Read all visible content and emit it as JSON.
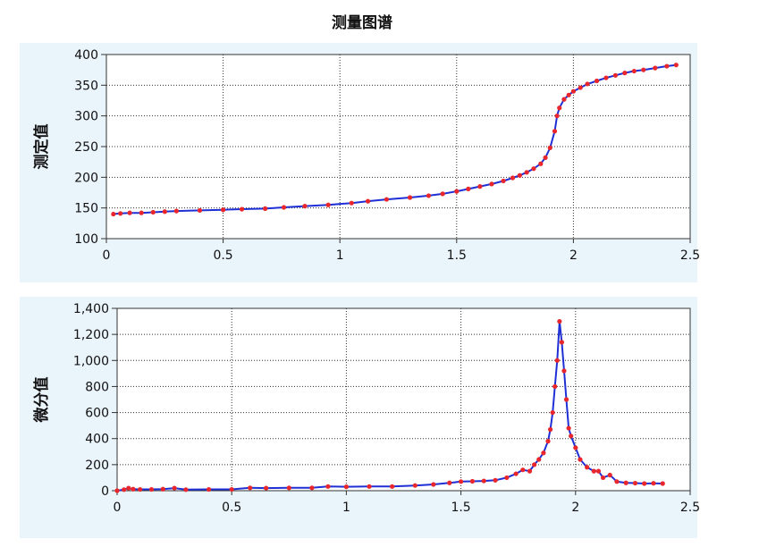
{
  "title": "测量图谱",
  "colors": {
    "panel_bg": "#eaf4fb",
    "plot_bg": "#ffffff",
    "line": "#1f2fd6",
    "marker": "#e8262b",
    "grid": "#333333"
  },
  "chart_data": [
    {
      "type": "line",
      "ylabel": "测定值",
      "xlim": [
        0,
        2.5
      ],
      "ylim": [
        100,
        400
      ],
      "xticks": [
        0,
        0.5,
        1,
        1.5,
        2,
        2.5
      ],
      "xtick_labels": [
        "0",
        "0.5",
        "1",
        "1.5",
        "2",
        "2.5"
      ],
      "yticks": [
        100,
        150,
        200,
        250,
        300,
        350,
        400
      ],
      "ytick_labels": [
        "100",
        "150",
        "200",
        "250",
        "300",
        "350",
        "400"
      ],
      "grid": true,
      "series": [
        {
          "x": [
            0.03,
            0.06,
            0.1,
            0.15,
            0.2,
            0.25,
            0.3,
            0.4,
            0.5,
            0.58,
            0.68,
            0.76,
            0.85,
            0.95,
            1.05,
            1.12,
            1.2,
            1.3,
            1.38,
            1.44,
            1.5,
            1.55,
            1.6,
            1.65,
            1.7,
            1.74,
            1.77,
            1.8,
            1.83,
            1.86,
            1.88,
            1.9,
            1.92,
            1.93,
            1.94,
            1.96,
            1.98,
            2.0,
            2.03,
            2.06,
            2.1,
            2.14,
            2.18,
            2.22,
            2.26,
            2.3,
            2.35,
            2.4,
            2.44
          ],
          "y": [
            140,
            141,
            142,
            142,
            143,
            144,
            145,
            146,
            147,
            148,
            149,
            151,
            153,
            155,
            158,
            161,
            164,
            167,
            170,
            173,
            177,
            181,
            185,
            189,
            194,
            199,
            203,
            208,
            214,
            222,
            232,
            248,
            275,
            300,
            313,
            327,
            334,
            340,
            346,
            352,
            357,
            362,
            366,
            370,
            373,
            375,
            378,
            381,
            383
          ]
        }
      ]
    },
    {
      "type": "line",
      "ylabel": "微分值",
      "xlim": [
        0,
        2.5
      ],
      "ylim": [
        0,
        1400
      ],
      "xticks": [
        0,
        0.5,
        1,
        1.5,
        2,
        2.5
      ],
      "xtick_labels": [
        "0",
        "0.5",
        "1",
        "1.5",
        "2",
        "2.5"
      ],
      "yticks": [
        0,
        200,
        400,
        600,
        800,
        1000,
        1200,
        1400
      ],
      "ytick_labels": [
        "0",
        "200",
        "400",
        "600",
        "800",
        "1,000",
        "1,200",
        "1,400"
      ],
      "grid": true,
      "series": [
        {
          "x": [
            0.0,
            0.03,
            0.05,
            0.07,
            0.1,
            0.15,
            0.2,
            0.25,
            0.3,
            0.4,
            0.5,
            0.58,
            0.65,
            0.75,
            0.85,
            0.92,
            1.0,
            1.1,
            1.2,
            1.3,
            1.38,
            1.45,
            1.5,
            1.55,
            1.6,
            1.65,
            1.7,
            1.74,
            1.77,
            1.8,
            1.82,
            1.84,
            1.86,
            1.88,
            1.89,
            1.9,
            1.91,
            1.92,
            1.93,
            1.94,
            1.95,
            1.96,
            1.97,
            1.98,
            2.0,
            2.02,
            2.05,
            2.08,
            2.1,
            2.12,
            2.15,
            2.18,
            2.22,
            2.26,
            2.3,
            2.34,
            2.38
          ],
          "y": [
            0,
            8,
            20,
            12,
            10,
            10,
            12,
            20,
            8,
            10,
            10,
            22,
            20,
            22,
            22,
            32,
            30,
            32,
            32,
            40,
            48,
            60,
            70,
            72,
            75,
            80,
            100,
            130,
            160,
            150,
            200,
            240,
            290,
            380,
            470,
            600,
            800,
            1000,
            1300,
            1140,
            920,
            700,
            480,
            420,
            330,
            240,
            180,
            150,
            150,
            100,
            120,
            70,
            60,
            58,
            55,
            57,
            55
          ]
        }
      ]
    }
  ]
}
